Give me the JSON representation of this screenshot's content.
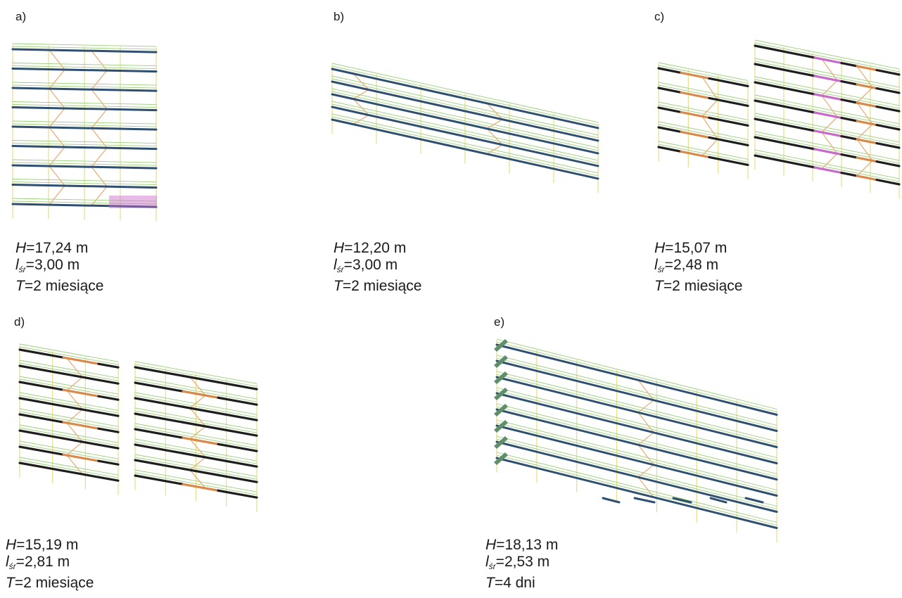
{
  "panels": [
    {
      "id": "a",
      "label": "a)",
      "H": "17,24 m",
      "l": "3,00 m",
      "T": "2 miesiące"
    },
    {
      "id": "b",
      "label": "b)",
      "H": "12,20 m",
      "l": "3,00 m",
      "T": "2 miesiące"
    },
    {
      "id": "c",
      "label": "c)",
      "H": "15,07 m",
      "l": "2,48 m",
      "T": "2 miesiące"
    },
    {
      "id": "d",
      "label": "d)",
      "H": "15,19 m",
      "l": "2,81 m",
      "T": "2 miesiące"
    },
    {
      "id": "e",
      "label": "e)",
      "H": "18,13 m",
      "l": "2,53 m",
      "T": "4 dni"
    }
  ],
  "symbols": {
    "H": "H",
    "l": "l",
    "l_sub": "śr",
    "T": "T",
    "eq": "="
  },
  "colors": {
    "plank_blue": "#2f4f6f",
    "plank_dark": "#1e1e1e",
    "orange": "#d9894a",
    "magenta": "#c86bc8",
    "green_rail": "#9ad07a",
    "yellow_post": "#e6df8a",
    "brace": "#e8b482"
  }
}
